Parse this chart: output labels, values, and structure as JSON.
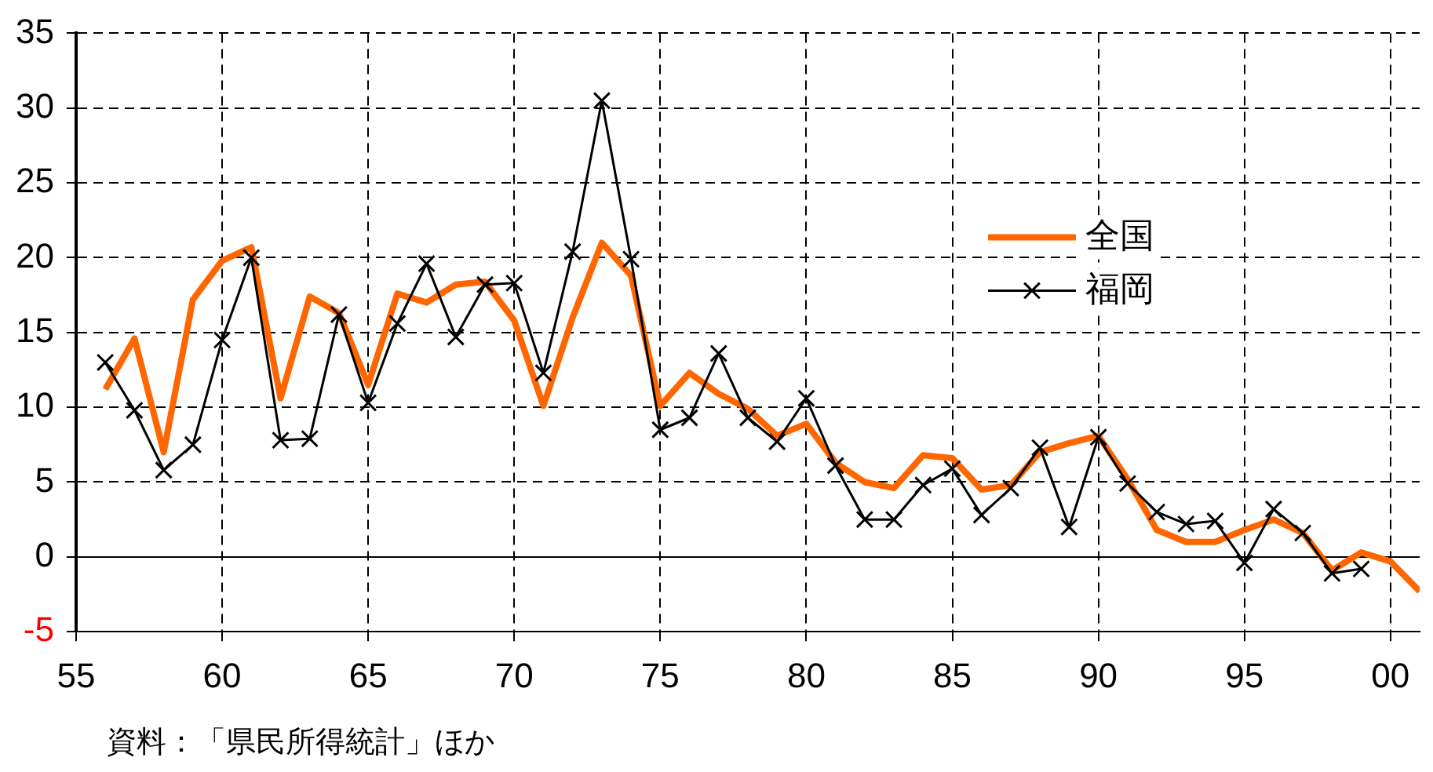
{
  "chart_data": {
    "type": "line",
    "x": [
      1956,
      1957,
      1958,
      1959,
      1960,
      1961,
      1962,
      1963,
      1964,
      1965,
      1966,
      1967,
      1968,
      1969,
      1970,
      1971,
      1972,
      1973,
      1974,
      1975,
      1976,
      1977,
      1978,
      1979,
      1980,
      1981,
      1982,
      1983,
      1984,
      1985,
      1986,
      1987,
      1988,
      1989,
      1990,
      1991,
      1992,
      1993,
      1994,
      1995,
      1996,
      1997,
      1998,
      1999,
      2000,
      2001
    ],
    "series": [
      {
        "name": "全国",
        "color": "#ff6600",
        "marker": "none",
        "values": [
          11.2,
          14.6,
          7.0,
          17.2,
          19.8,
          20.7,
          10.6,
          17.4,
          16.3,
          11.5,
          17.6,
          17.0,
          18.2,
          18.4,
          15.8,
          10.1,
          16.0,
          21.0,
          18.8,
          10.1,
          12.3,
          10.9,
          9.9,
          8.1,
          8.9,
          6.3,
          5.0,
          4.6,
          6.8,
          6.6,
          4.5,
          4.8,
          7.0,
          7.6,
          8.1,
          5.2,
          1.8,
          1.0,
          1.0,
          1.8,
          2.5,
          1.6,
          -0.9,
          0.3,
          -0.3,
          -2.3
        ]
      },
      {
        "name": "福岡",
        "color": "#000000",
        "marker": "cross",
        "values": [
          13.0,
          9.8,
          5.8,
          7.5,
          14.5,
          20.0,
          7.8,
          7.9,
          16.2,
          10.3,
          15.6,
          19.6,
          14.7,
          18.2,
          18.3,
          12.3,
          20.4,
          30.5,
          19.9,
          8.5,
          9.3,
          13.6,
          9.3,
          7.7,
          10.6,
          6.1,
          2.5,
          2.5,
          4.8,
          5.9,
          2.8,
          4.6,
          7.3,
          2.0,
          8.0,
          4.9,
          3.0,
          2.2,
          2.4,
          -0.4,
          3.2,
          1.6,
          -1.1,
          -0.8,
          null,
          null
        ]
      }
    ],
    "xlim": [
      1955,
      2001
    ],
    "xticks": [
      {
        "value": 1955,
        "label": "55"
      },
      {
        "value": 1960,
        "label": "60"
      },
      {
        "value": 1965,
        "label": "65"
      },
      {
        "value": 1970,
        "label": "70"
      },
      {
        "value": 1975,
        "label": "75"
      },
      {
        "value": 1980,
        "label": "80"
      },
      {
        "value": 1985,
        "label": "85"
      },
      {
        "value": 1990,
        "label": "90"
      },
      {
        "value": 1995,
        "label": "95"
      },
      {
        "value": 2000,
        "label": "00"
      }
    ],
    "ylim": [
      -5,
      35
    ],
    "yticks": [
      -5,
      0,
      5,
      10,
      15,
      20,
      25,
      30,
      35
    ],
    "grid": true,
    "legend": "right",
    "annotations": [
      "資料：「県民所得統計」ほか"
    ]
  }
}
